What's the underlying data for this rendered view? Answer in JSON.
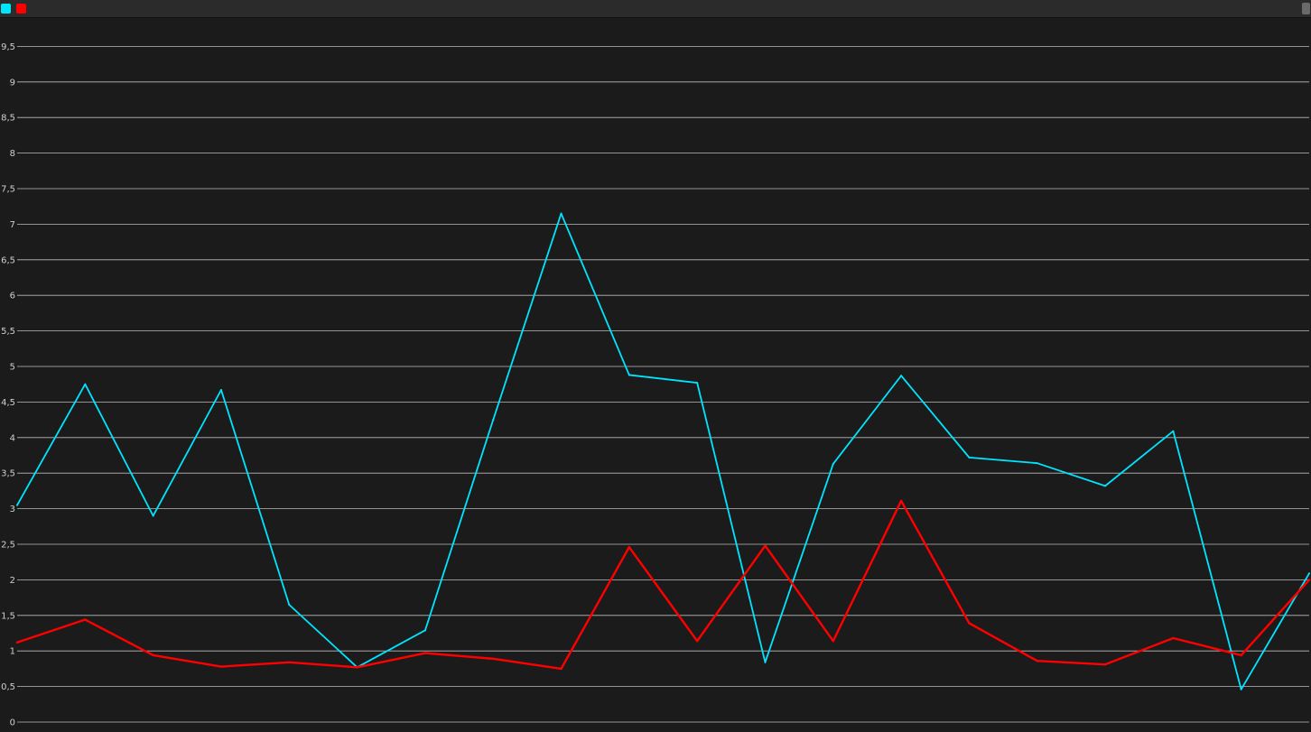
{
  "legend": {
    "series_1_color": "#00e5ff",
    "series_2_color": "#ff0000"
  },
  "colors": {
    "background": "#1c1c1c",
    "plot_background": "#1b1b1b",
    "gridline": "#d8d8d8",
    "toolbar": "#2b2b2b"
  },
  "chart_data": {
    "type": "line",
    "x": [
      1,
      2,
      3,
      4,
      5,
      6,
      7,
      8,
      9,
      10,
      11,
      12,
      13,
      14,
      15,
      16,
      17,
      18,
      19,
      20
    ],
    "ylim": [
      0,
      9.8
    ],
    "y_ticks": [
      "0",
      "0,5",
      "1",
      "1,5",
      "2",
      "2,5",
      "3",
      "3,5",
      "4",
      "4,5",
      "5",
      "5,5",
      "6",
      "6,5",
      "7",
      "7,5",
      "8",
      "8,5",
      "9",
      "9,5"
    ],
    "y_tick_values": [
      0,
      0.5,
      1,
      1.5,
      2,
      2.5,
      3,
      3.5,
      4,
      4.5,
      5,
      5.5,
      6,
      6.5,
      7,
      7.5,
      8,
      8.5,
      9,
      9.5
    ],
    "grid": true,
    "legend_position": "top-left",
    "series": [
      {
        "color": "#00e5ff",
        "values": [
          3.05,
          4.75,
          2.9,
          4.67,
          1.65,
          0.77,
          1.29,
          4.25,
          7.15,
          4.88,
          4.77,
          0.84,
          3.63,
          4.87,
          3.72,
          3.64,
          3.32,
          4.09,
          0.46,
          2.09
        ]
      },
      {
        "color": "#ff0000",
        "values": [
          1.12,
          1.44,
          0.94,
          0.78,
          0.84,
          0.77,
          0.97,
          0.89,
          0.75,
          2.46,
          1.14,
          2.48,
          1.14,
          3.11,
          1.39,
          0.86,
          0.81,
          1.18,
          0.94,
          2.0
        ]
      }
    ]
  }
}
